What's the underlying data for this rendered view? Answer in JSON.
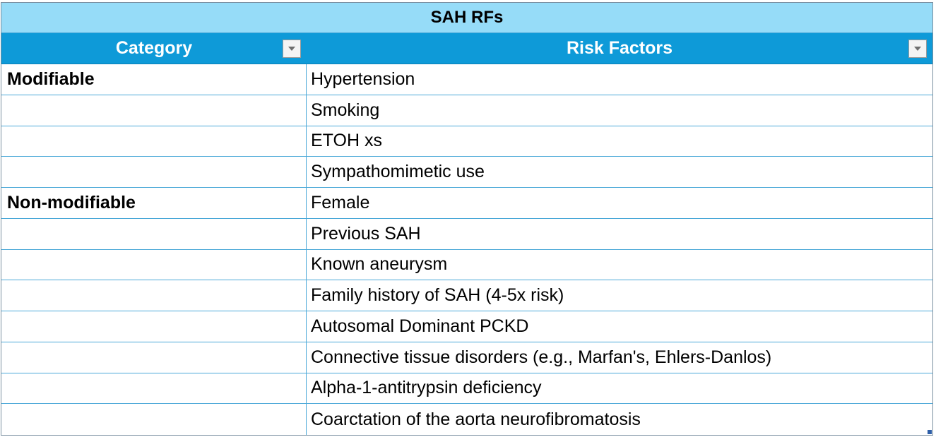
{
  "table": {
    "title": "SAH RFs",
    "columns": [
      {
        "label": "Category"
      },
      {
        "label": "Risk Factors"
      }
    ],
    "rows": [
      {
        "category": "Modifiable",
        "risk_factor": "Hypertension"
      },
      {
        "category": "",
        "risk_factor": "Smoking"
      },
      {
        "category": "",
        "risk_factor": "ETOH xs"
      },
      {
        "category": "",
        "risk_factor": "Sympathomimetic use"
      },
      {
        "category": "Non-modifiable",
        "risk_factor": "Female"
      },
      {
        "category": "",
        "risk_factor": "Previous SAH"
      },
      {
        "category": "",
        "risk_factor": "Known aneurysm"
      },
      {
        "category": "",
        "risk_factor": "Family history of SAH (4-5x risk)"
      },
      {
        "category": "",
        "risk_factor": "Autosomal Dominant PCKD"
      },
      {
        "category": "",
        "risk_factor": "Connective tissue disorders (e.g., Marfan's, Ehlers-Danlos)"
      },
      {
        "category": "",
        "risk_factor": "Alpha-1-antitrypsin deficiency"
      },
      {
        "category": "",
        "risk_factor": "Coarctation of the aorta neurofibromatosis"
      }
    ]
  },
  "colors": {
    "title_bg": "#96dcf8",
    "header_bg": "#0e9ad8",
    "grid_line": "#4aa8d8"
  },
  "icons": {
    "filter": "chevron-down-icon"
  }
}
